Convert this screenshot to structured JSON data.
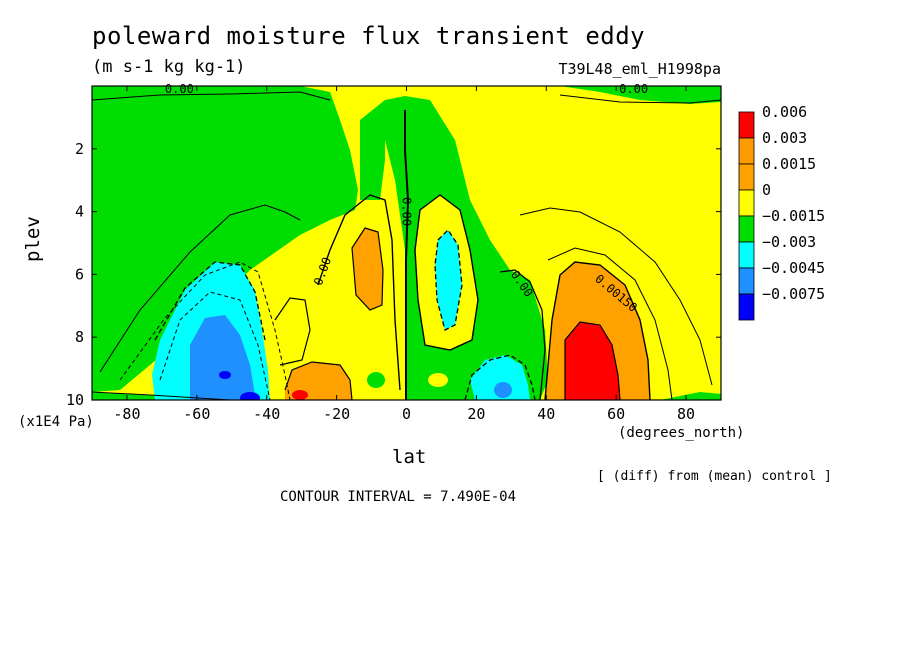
{
  "title": "poleward moisture flux transient eddy",
  "units": "(m s-1 kg kg-1)",
  "run_label": "T39L48_eml_H1998pa",
  "diff_note": "[ (diff) from (mean) control ]",
  "contour_interval": "CONTOUR INTERVAL = 7.490E-04",
  "chart_data": {
    "type": "contour",
    "xlabel": "lat",
    "xunits": "(degrees_north)",
    "ylabel": "plev",
    "yunits": "(x1E4 Pa)",
    "xlim": [
      -90,
      90
    ],
    "ylim": [
      10,
      0
    ],
    "x_ticks": [
      "-80",
      "-60",
      "-40",
      "-20",
      "0",
      "20",
      "40",
      "60",
      "80"
    ],
    "x_tick_values": [
      -80,
      -60,
      -40,
      -20,
      0,
      20,
      40,
      60,
      80
    ],
    "y_ticks": [
      "2",
      "4",
      "6",
      "8",
      "10"
    ],
    "y_tick_values": [
      2,
      4,
      6,
      8,
      10
    ],
    "legend": {
      "labels": [
        "0.006",
        "0.003",
        "0.0015",
        "0",
        "−0.0015",
        "−0.003",
        "−0.0045",
        "−0.0075"
      ],
      "colors": [
        "#ff0000",
        "#ff9a00",
        "#ffa200",
        "#ffff00",
        "#00dd00",
        "#00ffff",
        "#1e90ff",
        "#0000ff"
      ]
    },
    "contour_labels": [
      {
        "text": "0.00",
        "lat": -65,
        "plev": 0.1
      },
      {
        "text": "0.00",
        "lat": 65,
        "plev": 0.1
      },
      {
        "text": "0.00",
        "lat": 0,
        "plev": 4.0
      },
      {
        "text": "0.00",
        "lat": -24,
        "plev": 5.9
      },
      {
        "text": "0.00",
        "lat": 33,
        "plev": 6.3
      },
      {
        "text": "0.00150",
        "lat": 60,
        "plev": 6.6
      }
    ],
    "features": [
      {
        "name": "southern negative minimum",
        "lat": -52,
        "plev": 9.3,
        "min_level": "-0.0075"
      },
      {
        "name": "northern positive maximum",
        "lat": 50,
        "plev": 9.0,
        "max_level": "0.006"
      },
      {
        "name": "subtropical positive lobe SH",
        "lat": -12,
        "plev": 6.0,
        "level": "0.0015"
      },
      {
        "name": "subtropical negative lobe NH",
        "lat": 11,
        "plev": 6.0,
        "level": "-0.0015"
      },
      {
        "name": "near-surface positive SH",
        "lat": -24,
        "plev": 9.6,
        "level": "0.0015"
      },
      {
        "name": "near-surface negative NH",
        "lat": 26,
        "plev": 9.4,
        "level": "-0.003"
      }
    ]
  }
}
